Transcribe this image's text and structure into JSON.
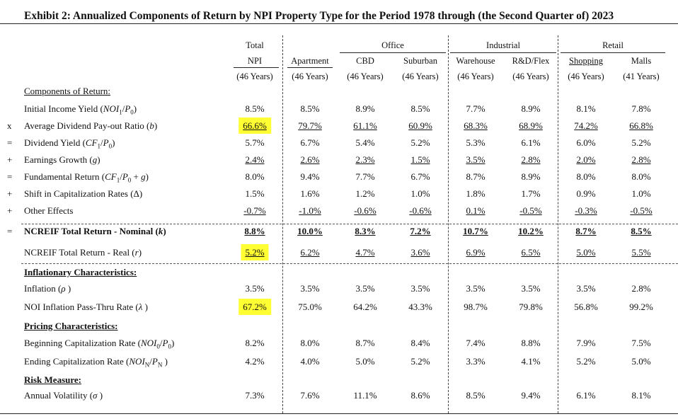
{
  "title": "Exhibit 2: Annualized Components of Return by NPI Property Type for the Period 1978 through (the Second Quarter of) 2023",
  "header": {
    "groups": [
      "Office",
      "Industrial",
      "Retail"
    ],
    "columns": [
      {
        "line1": "Total",
        "line2": "NPI",
        "years": "(46 Years)"
      },
      {
        "line1": "",
        "line2": "Apartment",
        "years": "(46 Years)"
      },
      {
        "line1": "",
        "line2": "CBD",
        "years": "(46 Years)"
      },
      {
        "line1": "",
        "line2": "Suburban",
        "years": "(46 Years)"
      },
      {
        "line1": "",
        "line2": "Warehouse",
        "years": "(46 Years)"
      },
      {
        "line1": "",
        "line2": "R&D/Flex",
        "years": "(46 Years)"
      },
      {
        "line1": "",
        "line2": "Shopping",
        "years": "(46 Years)"
      },
      {
        "line1": "",
        "line2": "Malls",
        "years": "(41 Years)"
      }
    ]
  },
  "sections": {
    "components": "Components of Return:",
    "inflationary": "Inflationary Characteristics:",
    "pricing": "Pricing Characteristics:",
    "risk": "Risk Measure:"
  },
  "rows": [
    {
      "symbol": "",
      "label": "Initial Income Yield (NOI₁/P₀)",
      "values": [
        "8.5%",
        "8.5%",
        "8.9%",
        "8.5%",
        "7.7%",
        "8.9%",
        "8.1%",
        "7.8%"
      ]
    },
    {
      "symbol": "x",
      "label": "Average Dividend Pay-out Ratio (b)",
      "values": [
        "66.6%",
        "79.7%",
        "61.1%",
        "60.9%",
        "68.3%",
        "68.9%",
        "74.2%",
        "66.8%"
      ]
    },
    {
      "symbol": "=",
      "label": "Dividend Yield (CF₁/P₀)",
      "values": [
        "5.7%",
        "6.7%",
        "5.4%",
        "5.2%",
        "5.3%",
        "6.1%",
        "6.0%",
        "5.2%"
      ]
    },
    {
      "symbol": "+",
      "label": "Earnings Growth (g)",
      "values": [
        "2.4%",
        "2.6%",
        "2.3%",
        "1.5%",
        "3.5%",
        "2.8%",
        "2.0%",
        "2.8%"
      ]
    },
    {
      "symbol": "=",
      "label": "Fundamental Return (CF₁/P₀ + g)",
      "values": [
        "8.0%",
        "9.4%",
        "7.7%",
        "6.7%",
        "8.7%",
        "8.9%",
        "8.0%",
        "8.0%"
      ]
    },
    {
      "symbol": "+",
      "label": "Shift in Capitalization Rates (Δ)",
      "values": [
        "1.5%",
        "1.6%",
        "1.2%",
        "1.0%",
        "1.8%",
        "1.7%",
        "0.9%",
        "1.0%"
      ]
    },
    {
      "symbol": "+",
      "label": "Other Effects",
      "values": [
        "-0.7%",
        "-1.0%",
        "-0.6%",
        "-0.6%",
        "0.1%",
        "-0.5%",
        "-0.3%",
        "-0.5%"
      ]
    },
    {
      "symbol": "=",
      "label": "NCREIF Total Return - Nominal (k)",
      "values": [
        "8.8%",
        "10.0%",
        "8.3%",
        "7.2%",
        "10.7%",
        "10.2%",
        "8.7%",
        "8.5%"
      ]
    },
    {
      "symbol": "",
      "label": "NCREIF Total Return - Real (r)",
      "values": [
        "5.2%",
        "6.2%",
        "4.7%",
        "3.6%",
        "6.9%",
        "6.5%",
        "5.0%",
        "5.5%"
      ]
    },
    {
      "symbol": "",
      "label": "Inflation (ρ )",
      "values": [
        "3.5%",
        "3.5%",
        "3.5%",
        "3.5%",
        "3.5%",
        "3.5%",
        "3.5%",
        "2.8%"
      ]
    },
    {
      "symbol": "",
      "label": "NOI Inflation Pass-Thru Rate (λ )",
      "values": [
        "67.2%",
        "75.0%",
        "64.2%",
        "43.3%",
        "98.7%",
        "79.8%",
        "56.8%",
        "99.2%"
      ]
    },
    {
      "symbol": "",
      "label": "Beginning Capitalization Rate (NOI₀/P₀)",
      "values": [
        "8.2%",
        "8.0%",
        "8.7%",
        "8.4%",
        "7.4%",
        "8.8%",
        "7.9%",
        "7.5%"
      ]
    },
    {
      "symbol": "",
      "label": "Ending Capitalization Rate (NOIₙ/Pₙ )",
      "values": [
        "4.2%",
        "4.0%",
        "5.0%",
        "5.2%",
        "3.3%",
        "4.1%",
        "5.2%",
        "5.0%"
      ]
    },
    {
      "symbol": "",
      "label": "Annual Volatility (σ )",
      "values": [
        "7.3%",
        "7.6%",
        "11.1%",
        "8.6%",
        "8.5%",
        "9.4%",
        "6.1%",
        "8.1%"
      ]
    }
  ],
  "highlight_color": "#ffff33"
}
